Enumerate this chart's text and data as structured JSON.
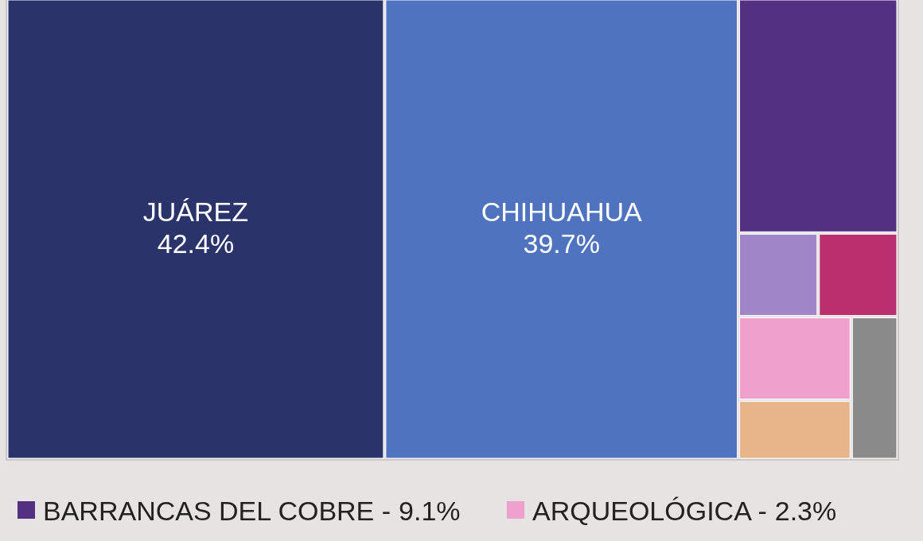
{
  "chart_data": {
    "type": "other",
    "categories": [
      "JUÁREZ",
      "CHIHUAHUA",
      "BARRANCAS DEL COBRE -",
      null,
      null,
      "ARQUEOLÓGICA -",
      null,
      null
    ],
    "values": [
      42.4,
      39.7,
      9.1,
      null,
      null,
      2.3,
      null,
      null
    ],
    "value_labels": [
      "42.4%",
      "39.7%",
      "9.1%",
      null,
      null,
      "2.3%",
      null,
      null
    ],
    "colors": [
      "#2b336b",
      "#4f73bf",
      "#533082",
      "#a086c8",
      "#bb2f6e",
      "#f0a0cc",
      "#e8b48a",
      "#8a8a8a"
    ]
  }
}
